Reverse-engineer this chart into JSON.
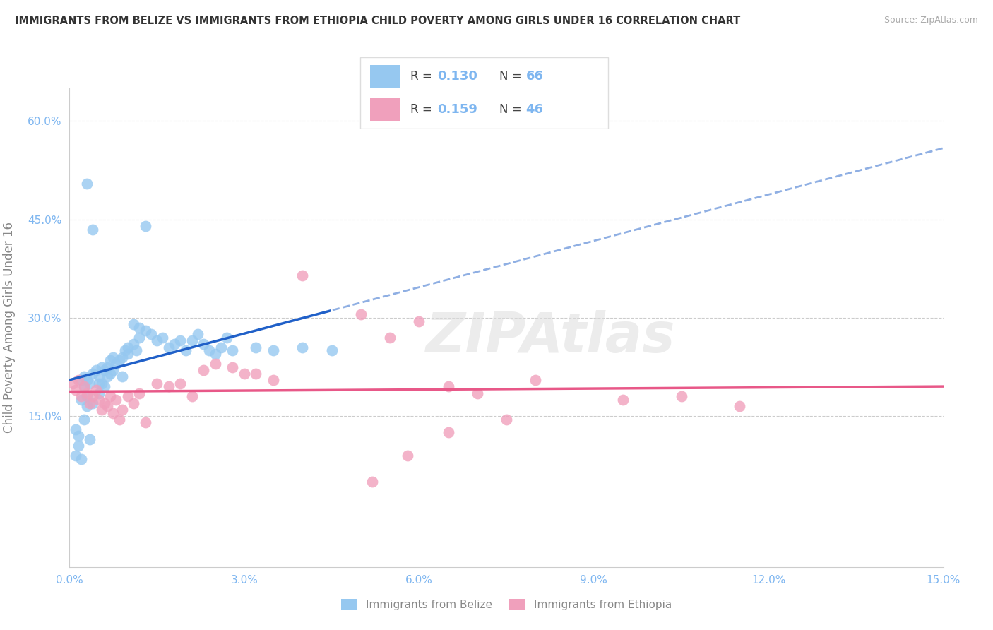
{
  "title": "IMMIGRANTS FROM BELIZE VS IMMIGRANTS FROM ETHIOPIA CHILD POVERTY AMONG GIRLS UNDER 16 CORRELATION CHART",
  "source_text": "Source: ZipAtlas.com",
  "ylabel": "Child Poverty Among Girls Under 16",
  "xlim": [
    0.0,
    15.0
  ],
  "ylim": [
    -8.0,
    65.0
  ],
  "xtick_values": [
    0.0,
    3.0,
    6.0,
    9.0,
    12.0,
    15.0
  ],
  "xtick_labels": [
    "0.0%",
    "3.0%",
    "6.0%",
    "9.0%",
    "12.0%",
    "15.0%"
  ],
  "ytick_values": [
    15.0,
    30.0,
    45.0,
    60.0
  ],
  "ytick_labels": [
    "15.0%",
    "30.0%",
    "45.0%",
    "60.0%"
  ],
  "legend_belize": "Immigrants from Belize",
  "legend_ethiopia": "Immigrants from Ethiopia",
  "legend_r_belize": "0.130",
  "legend_n_belize": "66",
  "legend_r_ethiopia": "0.159",
  "legend_n_ethiopia": "46",
  "color_belize": "#96C8F0",
  "color_ethiopia": "#F0A0BC",
  "color_belize_line": "#2060C8",
  "color_ethiopia_line": "#E85888",
  "watermark": "ZIPAtlas",
  "belize_x": [
    0.1,
    0.15,
    0.15,
    0.2,
    0.2,
    0.25,
    0.25,
    0.3,
    0.3,
    0.3,
    0.35,
    0.4,
    0.4,
    0.45,
    0.5,
    0.5,
    0.5,
    0.55,
    0.55,
    0.6,
    0.6,
    0.65,
    0.65,
    0.7,
    0.7,
    0.75,
    0.75,
    0.8,
    0.85,
    0.9,
    0.9,
    0.95,
    1.0,
    1.0,
    1.1,
    1.15,
    1.2,
    1.3,
    1.4,
    1.5,
    1.6,
    1.7,
    1.8,
    1.9,
    2.0,
    2.1,
    2.2,
    2.3,
    2.4,
    2.5,
    2.6,
    2.7,
    2.8,
    3.2,
    3.5,
    4.0,
    4.5,
    0.3,
    0.4,
    1.3,
    0.1,
    0.2,
    1.1,
    1.2,
    0.25,
    0.35
  ],
  "belize_y": [
    13.0,
    12.0,
    10.5,
    20.5,
    17.5,
    21.0,
    19.5,
    20.5,
    18.0,
    16.5,
    20.0,
    21.5,
    17.0,
    22.0,
    21.0,
    20.0,
    18.5,
    22.5,
    20.0,
    22.0,
    19.5,
    22.5,
    21.0,
    23.5,
    21.5,
    24.0,
    22.0,
    23.0,
    23.5,
    24.0,
    21.0,
    25.0,
    25.5,
    24.5,
    26.0,
    25.0,
    27.0,
    28.0,
    27.5,
    26.5,
    27.0,
    25.5,
    26.0,
    26.5,
    25.0,
    26.5,
    27.5,
    26.0,
    25.0,
    24.5,
    25.5,
    27.0,
    25.0,
    25.5,
    25.0,
    25.5,
    25.0,
    50.5,
    43.5,
    44.0,
    9.0,
    8.5,
    29.0,
    28.5,
    14.5,
    11.5
  ],
  "ethiopia_x": [
    0.05,
    0.1,
    0.15,
    0.2,
    0.25,
    0.3,
    0.35,
    0.4,
    0.45,
    0.5,
    0.55,
    0.6,
    0.65,
    0.7,
    0.75,
    0.8,
    0.85,
    0.9,
    1.0,
    1.1,
    1.2,
    1.3,
    1.5,
    1.7,
    1.9,
    2.1,
    2.3,
    2.5,
    3.0,
    3.5,
    4.0,
    5.0,
    5.5,
    6.0,
    6.5,
    7.0,
    8.0,
    9.5,
    10.5,
    11.5,
    2.8,
    3.2,
    5.8,
    7.5,
    6.5,
    5.2
  ],
  "ethiopia_y": [
    20.0,
    19.0,
    20.5,
    18.0,
    19.5,
    18.5,
    17.0,
    18.0,
    19.0,
    17.5,
    16.0,
    17.0,
    16.5,
    18.0,
    15.5,
    17.5,
    14.5,
    16.0,
    18.0,
    17.0,
    18.5,
    14.0,
    20.0,
    19.5,
    20.0,
    18.0,
    22.0,
    23.0,
    21.5,
    20.5,
    36.5,
    30.5,
    27.0,
    29.5,
    19.5,
    18.5,
    20.5,
    17.5,
    18.0,
    16.5,
    22.5,
    21.5,
    9.0,
    14.5,
    12.5,
    5.0
  ]
}
